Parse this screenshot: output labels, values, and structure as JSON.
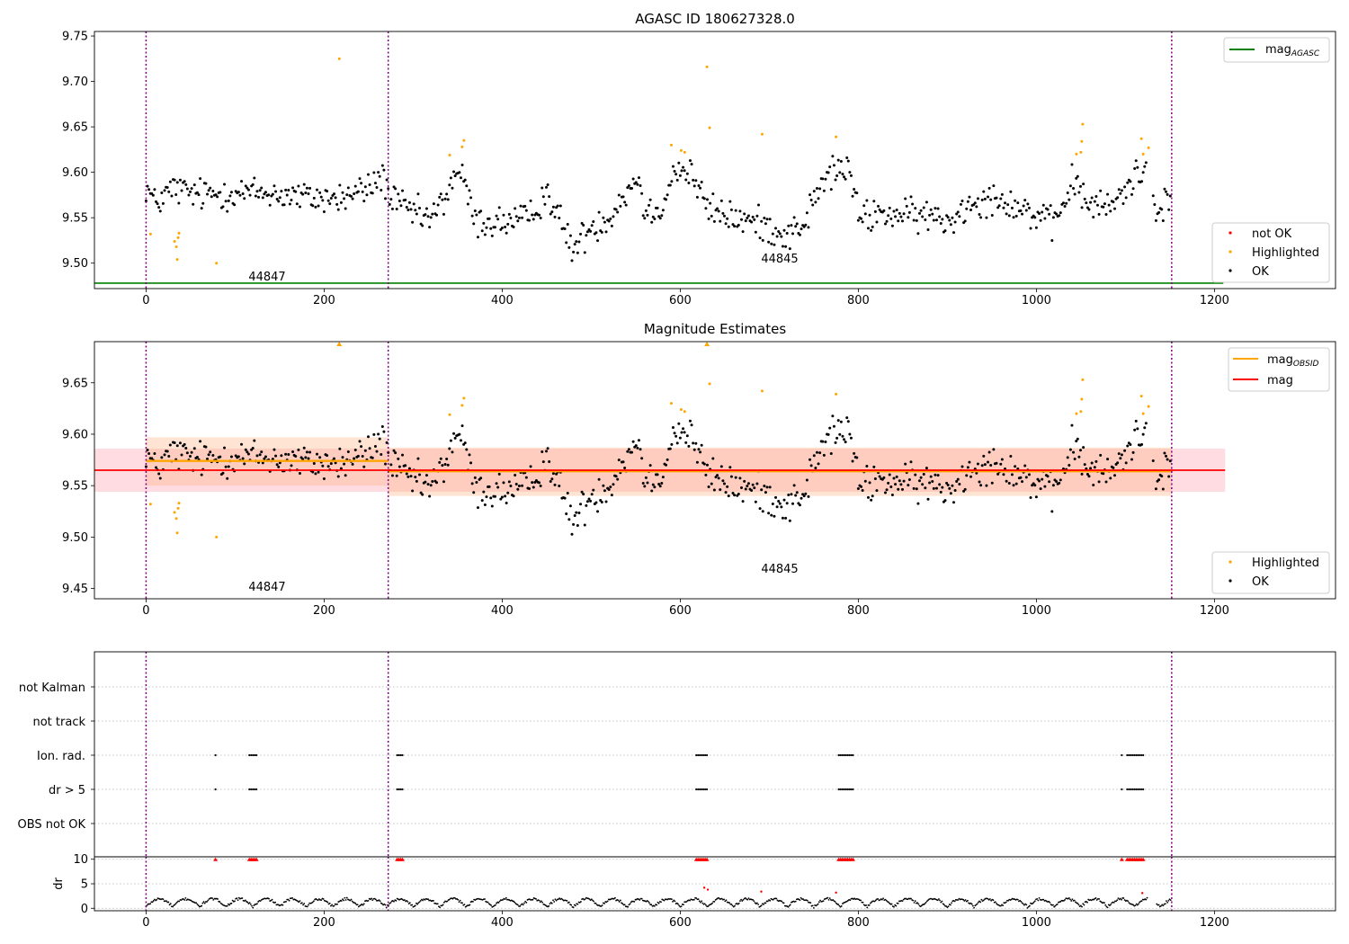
{
  "chart_data": [
    {
      "type": "scatter",
      "title": "AGASC ID 180627328.0",
      "xlim": [
        -58,
        1336
      ],
      "ylim": [
        9.472,
        9.755
      ],
      "xticks": [
        "0",
        "200",
        "400",
        "600",
        "800",
        "1000",
        "1200"
      ],
      "yticks": [
        "9.50",
        "9.55",
        "9.60",
        "9.65",
        "9.70",
        "9.75"
      ],
      "obsid_boundaries": [
        0,
        272,
        1152
      ],
      "obsid_labels": [
        {
          "label": "44847",
          "x": 135,
          "y": 9.484
        },
        {
          "label": "44845",
          "x": 713,
          "y": 9.504
        }
      ],
      "mag_agasc": 9.478,
      "line_legend": {
        "main": "mag",
        "sub": "AGASC"
      },
      "point_legend": [
        "not OK",
        "Highlighted",
        "OK"
      ],
      "highlighted_points": [
        [
          5,
          9.532
        ],
        [
          32,
          9.524
        ],
        [
          34,
          9.518
        ],
        [
          35,
          9.504
        ],
        [
          36,
          9.528
        ],
        [
          37,
          9.533
        ],
        [
          79,
          9.5
        ],
        [
          217,
          9.725
        ],
        [
          341,
          9.619
        ],
        [
          355,
          9.628
        ],
        [
          357,
          9.635
        ],
        [
          590,
          9.63
        ],
        [
          601,
          9.624
        ],
        [
          605,
          9.622
        ],
        [
          630,
          9.716
        ],
        [
          633,
          9.649
        ],
        [
          692,
          9.642
        ],
        [
          775,
          9.639
        ],
        [
          1045,
          9.62
        ],
        [
          1050,
          9.622
        ],
        [
          1051,
          9.634
        ],
        [
          1052,
          9.653
        ],
        [
          1118,
          9.637
        ],
        [
          1120,
          9.62
        ],
        [
          1126,
          9.627
        ]
      ],
      "not_ok_points": []
    },
    {
      "type": "scatter",
      "title": "Magnitude Estimates",
      "xlim": [
        -58,
        1336
      ],
      "ylim": [
        9.44,
        9.69
      ],
      "xticks": [
        "0",
        "200",
        "400",
        "600",
        "800",
        "1000",
        "1200"
      ],
      "yticks": [
        "9.45",
        "9.50",
        "9.55",
        "9.60",
        "9.65"
      ],
      "obsid_boundaries": [
        0,
        272,
        1152
      ],
      "obsid_labels": [
        {
          "label": "44847",
          "x": 135,
          "y": 9.449
        },
        {
          "label": "44845",
          "x": 713,
          "y": 9.468
        }
      ],
      "mag": 9.565,
      "mag_band": [
        9.544,
        9.586
      ],
      "mag_extent": [
        -58,
        1212
      ],
      "mag_obsid_segments": [
        {
          "x": [
            0,
            272
          ],
          "mag": 9.574,
          "band": [
            9.55,
            9.597
          ]
        },
        {
          "x": [
            272,
            1152
          ],
          "mag": 9.564,
          "band": [
            9.54,
            9.587
          ]
        }
      ],
      "line_legend": [
        {
          "main": "mag",
          "sub": "OBSID"
        },
        {
          "main": "mag",
          "sub": ""
        }
      ],
      "point_legend": [
        "Highlighted",
        "OK"
      ],
      "highlighted_points": [
        [
          5,
          9.532
        ],
        [
          32,
          9.524
        ],
        [
          34,
          9.518
        ],
        [
          35,
          9.504
        ],
        [
          36,
          9.528
        ],
        [
          37,
          9.533
        ],
        [
          79,
          9.5
        ],
        [
          341,
          9.619
        ],
        [
          355,
          9.628
        ],
        [
          357,
          9.635
        ],
        [
          590,
          9.63
        ],
        [
          601,
          9.624
        ],
        [
          605,
          9.622
        ],
        [
          633,
          9.649
        ],
        [
          692,
          9.642
        ],
        [
          775,
          9.639
        ],
        [
          1045,
          9.62
        ],
        [
          1050,
          9.622
        ],
        [
          1051,
          9.634
        ],
        [
          1052,
          9.653
        ],
        [
          1118,
          9.637
        ],
        [
          1120,
          9.62
        ],
        [
          1126,
          9.627
        ]
      ],
      "clipped_markers": [
        [
          217,
          9.688
        ],
        [
          630,
          9.688
        ]
      ]
    },
    {
      "type": "scatter",
      "title": "",
      "xlim": [
        -58,
        1336
      ],
      "flag_rows": [
        "not Kalman",
        "not track",
        "Ion. rad.",
        "dr > 5",
        "OBS not OK"
      ],
      "flag_events": {
        "Ion. rad.": [
          78,
          116,
          118,
          120,
          122,
          124,
          282,
          284,
          286,
          288,
          618,
          620,
          622,
          624,
          626,
          628,
          630,
          778,
          780,
          782,
          784,
          786,
          788,
          790,
          792,
          794,
          1096,
          1102,
          1104,
          1106,
          1108,
          1110,
          1112,
          1114,
          1116,
          1118,
          1120
        ],
        "dr > 5": [
          78,
          116,
          118,
          120,
          122,
          124,
          282,
          284,
          286,
          288,
          618,
          620,
          622,
          624,
          626,
          628,
          630,
          778,
          780,
          782,
          784,
          786,
          788,
          790,
          792,
          794,
          1096,
          1102,
          1104,
          1106,
          1108,
          1110,
          1112,
          1114,
          1116,
          1118,
          1120
        ]
      },
      "obsid_boundaries": [
        0,
        272,
        1152
      ]
    },
    {
      "type": "scatter",
      "title": "",
      "ylabel": "dr",
      "xlim": [
        -58,
        1336
      ],
      "ylim": [
        -0.5,
        10.5
      ],
      "xticks": [
        "0",
        "200",
        "400",
        "600",
        "800",
        "1000",
        "1200"
      ],
      "yticks": [
        "0",
        "5",
        "10"
      ],
      "obsid_boundaries": [
        0,
        272,
        1152
      ],
      "dr_clipped_at": 10,
      "outlier_points": [
        [
          627,
          4.2
        ],
        [
          631,
          3.8
        ],
        [
          691,
          3.4
        ],
        [
          775,
          3.2
        ],
        [
          1119,
          3.1
        ]
      ],
      "gaps": [
        [
          1158,
          1336
        ]
      ]
    }
  ],
  "colors": {
    "ok": "#000000",
    "highlighted": "#ffa500",
    "not_ok": "#ff0000",
    "agasc_line": "#008000",
    "mag_line": "#ff0000",
    "mag_band": "#ffc0cb",
    "obsid_line": "#ffa500",
    "obsid_band": "#ffb380",
    "boundary": "#800080"
  }
}
